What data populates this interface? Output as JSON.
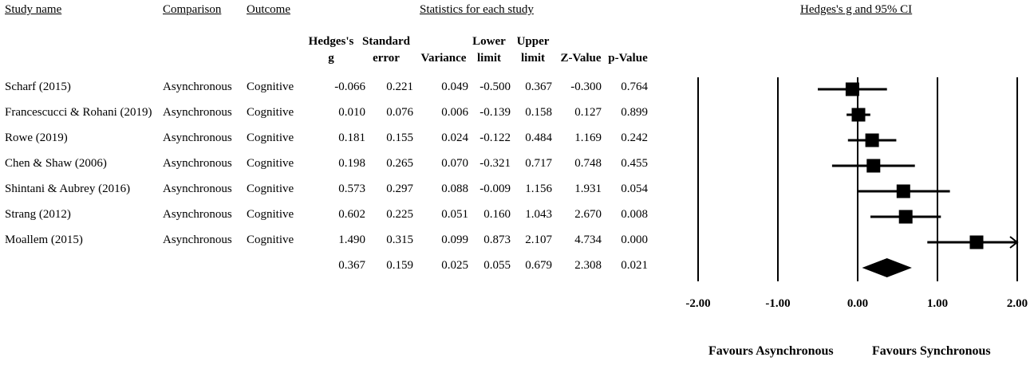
{
  "headers": {
    "study_name": "Study name",
    "comparison": "Comparison",
    "outcome": "Outcome",
    "statistics": "Statistics for each study",
    "plot_title": "Hedges's g and 95% CI"
  },
  "stat_columns": [
    {
      "line1": "Hedges's",
      "line2": "g"
    },
    {
      "line1": "Standard",
      "line2": "error"
    },
    {
      "line1": "",
      "line2": "Variance"
    },
    {
      "line1": "Lower",
      "line2": "limit"
    },
    {
      "line1": "Upper",
      "line2": "limit"
    },
    {
      "line1": "",
      "line2": "Z-Value"
    },
    {
      "line1": "",
      "line2": "p-Value"
    }
  ],
  "rows": [
    {
      "study": "Scharf (2015)",
      "comparison": "Asynchronous",
      "outcome": "Cognitive",
      "g": "-0.066",
      "se": "0.221",
      "var": "0.049",
      "lower": "-0.500",
      "upper": "0.367",
      "z": "-0.300",
      "p": "0.764"
    },
    {
      "study": "Francescucci & Rohani (2019)",
      "comparison": "Asynchronous",
      "outcome": "Cognitive",
      "g": "0.010",
      "se": "0.076",
      "var": "0.006",
      "lower": "-0.139",
      "upper": "0.158",
      "z": "0.127",
      "p": "0.899"
    },
    {
      "study": "Rowe (2019)",
      "comparison": "Asynchronous",
      "outcome": "Cognitive",
      "g": "0.181",
      "se": "0.155",
      "var": "0.024",
      "lower": "-0.122",
      "upper": "0.484",
      "z": "1.169",
      "p": "0.242"
    },
    {
      "study": "Chen & Shaw (2006)",
      "comparison": "Asynchronous",
      "outcome": "Cognitive",
      "g": "0.198",
      "se": "0.265",
      "var": "0.070",
      "lower": "-0.321",
      "upper": "0.717",
      "z": "0.748",
      "p": "0.455"
    },
    {
      "study": "Shintani & Aubrey (2016)",
      "comparison": "Asynchronous",
      "outcome": "Cognitive",
      "g": "0.573",
      "se": "0.297",
      "var": "0.088",
      "lower": "-0.009",
      "upper": "1.156",
      "z": "1.931",
      "p": "0.054"
    },
    {
      "study": "Strang (2012)",
      "comparison": "Asynchronous",
      "outcome": "Cognitive",
      "g": "0.602",
      "se": "0.225",
      "var": "0.051",
      "lower": "0.160",
      "upper": "1.043",
      "z": "2.670",
      "p": "0.008"
    },
    {
      "study": "Moallem (2015)",
      "comparison": "Asynchronous",
      "outcome": "Cognitive",
      "g": "1.490",
      "se": "0.315",
      "var": "0.099",
      "lower": "0.873",
      "upper": "2.107",
      "z": "4.734",
      "p": "0.000"
    }
  ],
  "summary": {
    "g": "0.367",
    "se": "0.159",
    "var": "0.025",
    "lower": "0.055",
    "upper": "0.679",
    "z": "2.308",
    "p": "0.021"
  },
  "chart_data": {
    "type": "forest",
    "title": "Hedges's g and 95% CI",
    "xlim": [
      -2,
      2
    ],
    "ticks": [
      -2,
      -1,
      0,
      1,
      2
    ],
    "tick_labels": [
      "-2.00",
      "-1.00",
      "0.00",
      "1.00",
      "2.00"
    ],
    "studies": [
      {
        "g": -0.066,
        "lower": -0.5,
        "upper": 0.367,
        "se": 0.221
      },
      {
        "g": 0.01,
        "lower": -0.139,
        "upper": 0.158,
        "se": 0.076
      },
      {
        "g": 0.181,
        "lower": -0.122,
        "upper": 0.484,
        "se": 0.155
      },
      {
        "g": 0.198,
        "lower": -0.321,
        "upper": 0.717,
        "se": 0.265
      },
      {
        "g": 0.573,
        "lower": -0.009,
        "upper": 1.156,
        "se": 0.297
      },
      {
        "g": 0.602,
        "lower": 0.16,
        "upper": 1.043,
        "se": 0.225
      },
      {
        "g": 1.49,
        "lower": 0.873,
        "upper": 2.107,
        "se": 0.315
      }
    ],
    "summary": {
      "g": 0.367,
      "lower": 0.055,
      "upper": 0.679
    },
    "favours_left": "Favours Asynchronous",
    "favours_right": "Favours Synchronous"
  }
}
